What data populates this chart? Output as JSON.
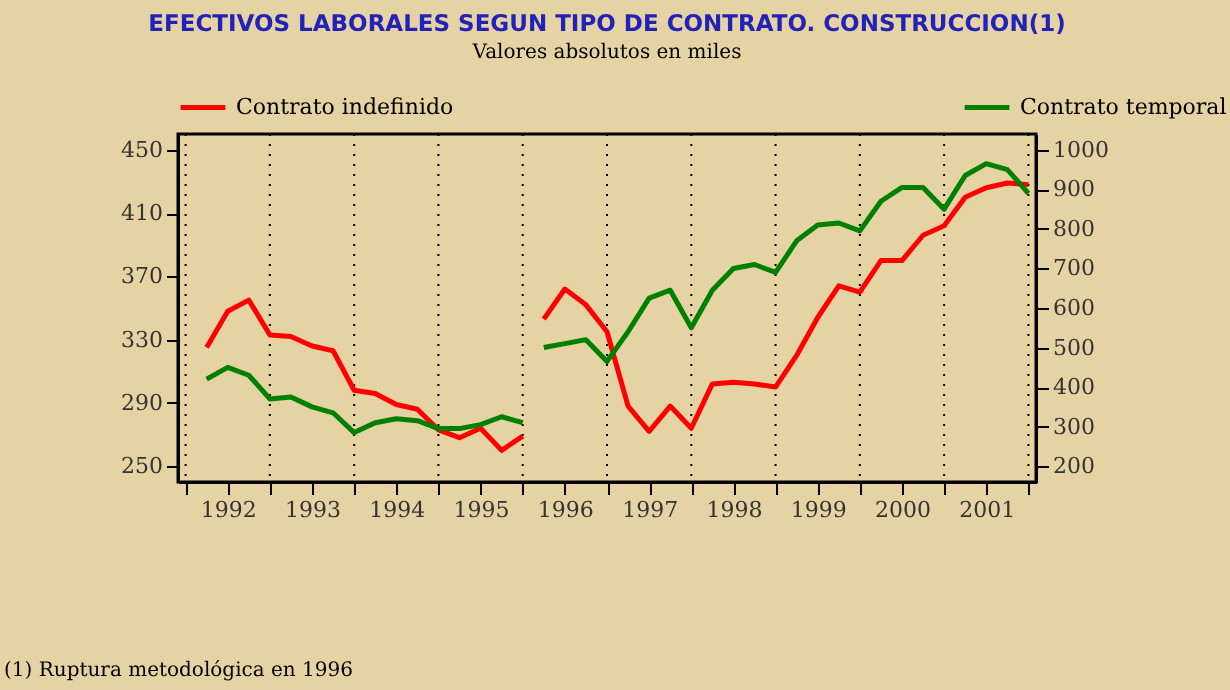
{
  "chart_data": {
    "type": "line",
    "title": "EFECTIVOS LABORALES SEGUN TIPO DE CONTRATO. CONSTRUCCION(1)",
    "subtitle": "Valores absolutos en miles",
    "annotations": [
      "(1) Ruptura metodológica en 1996"
    ],
    "x": [
      1992.25,
      1992.5,
      1992.75,
      1993.0,
      1993.25,
      1993.5,
      1993.75,
      1994.0,
      1994.25,
      1994.5,
      1994.75,
      1995.0,
      1995.25,
      1995.5,
      1995.75,
      1996.0,
      1996.125,
      1996.25,
      1996.5,
      1996.75,
      1997.0,
      1997.25,
      1997.5,
      1997.75,
      1998.0,
      1998.25,
      1998.5,
      1998.75,
      1999.0,
      1999.25,
      1999.5,
      1999.75,
      2000.0,
      2000.25,
      2000.5,
      2000.75,
      2001.0,
      2001.25,
      2001.5,
      2001.75,
      2002.0
    ],
    "series": [
      {
        "name": "Contrato indefinido",
        "color": "#ff0000",
        "values": [
          325,
          348,
          355,
          333,
          332,
          326,
          323,
          298,
          296,
          289,
          286,
          273,
          268,
          274,
          260,
          269,
          null,
          343,
          362,
          352,
          335,
          288,
          272,
          288,
          274,
          302,
          303,
          302,
          300,
          320,
          344,
          364,
          360,
          380,
          380,
          396,
          402,
          420,
          426,
          429,
          428
        ]
      },
      {
        "name": "Contrato temporal",
        "color": "#008000",
        "axis": "y2",
        "values": [
          420,
          450,
          430,
          370,
          375,
          350,
          335,
          285,
          310,
          320,
          315,
          295,
          295,
          305,
          325,
          310,
          null,
          500,
          510,
          520,
          465,
          540,
          625,
          645,
          550,
          645,
          700,
          710,
          690,
          770,
          810,
          815,
          795,
          870,
          905,
          905,
          850,
          935,
          965,
          950,
          890
        ]
      }
    ],
    "ylim": [
      240,
      460
    ],
    "yticks": [
      250,
      290,
      330,
      370,
      410,
      450
    ],
    "y2lim": [
      160,
      1040
    ],
    "y2ticks": [
      200,
      300,
      400,
      500,
      600,
      700,
      800,
      900,
      1000
    ],
    "xlim": [
      1991.91,
      2002.09
    ],
    "xticks": [
      {
        "value": 1992,
        "label": null
      },
      {
        "value": 1992.5,
        "label": "1992"
      },
      {
        "value": 1993,
        "label": null
      },
      {
        "value": 1993.5,
        "label": "1993"
      },
      {
        "value": 1994,
        "label": null
      },
      {
        "value": 1994.5,
        "label": "1994"
      },
      {
        "value": 1995,
        "label": null
      },
      {
        "value": 1995.5,
        "label": "1995"
      },
      {
        "value": 1996,
        "label": null
      },
      {
        "value": 1996.5,
        "label": "1996"
      },
      {
        "value": 1997,
        "label": null
      },
      {
        "value": 1997.5,
        "label": "1997"
      },
      {
        "value": 1998,
        "label": null
      },
      {
        "value": 1998.5,
        "label": "1998"
      },
      {
        "value": 1999,
        "label": null
      },
      {
        "value": 1999.5,
        "label": "1999"
      },
      {
        "value": 2000,
        "label": null
      },
      {
        "value": 2000.5,
        "label": "2000"
      },
      {
        "value": 2001,
        "label": null
      },
      {
        "value": 2001.5,
        "label": "2001"
      },
      {
        "value": 2002,
        "label": null
      }
    ],
    "grid": "x",
    "legend": "top",
    "line_style": "solid",
    "marker": "none"
  }
}
